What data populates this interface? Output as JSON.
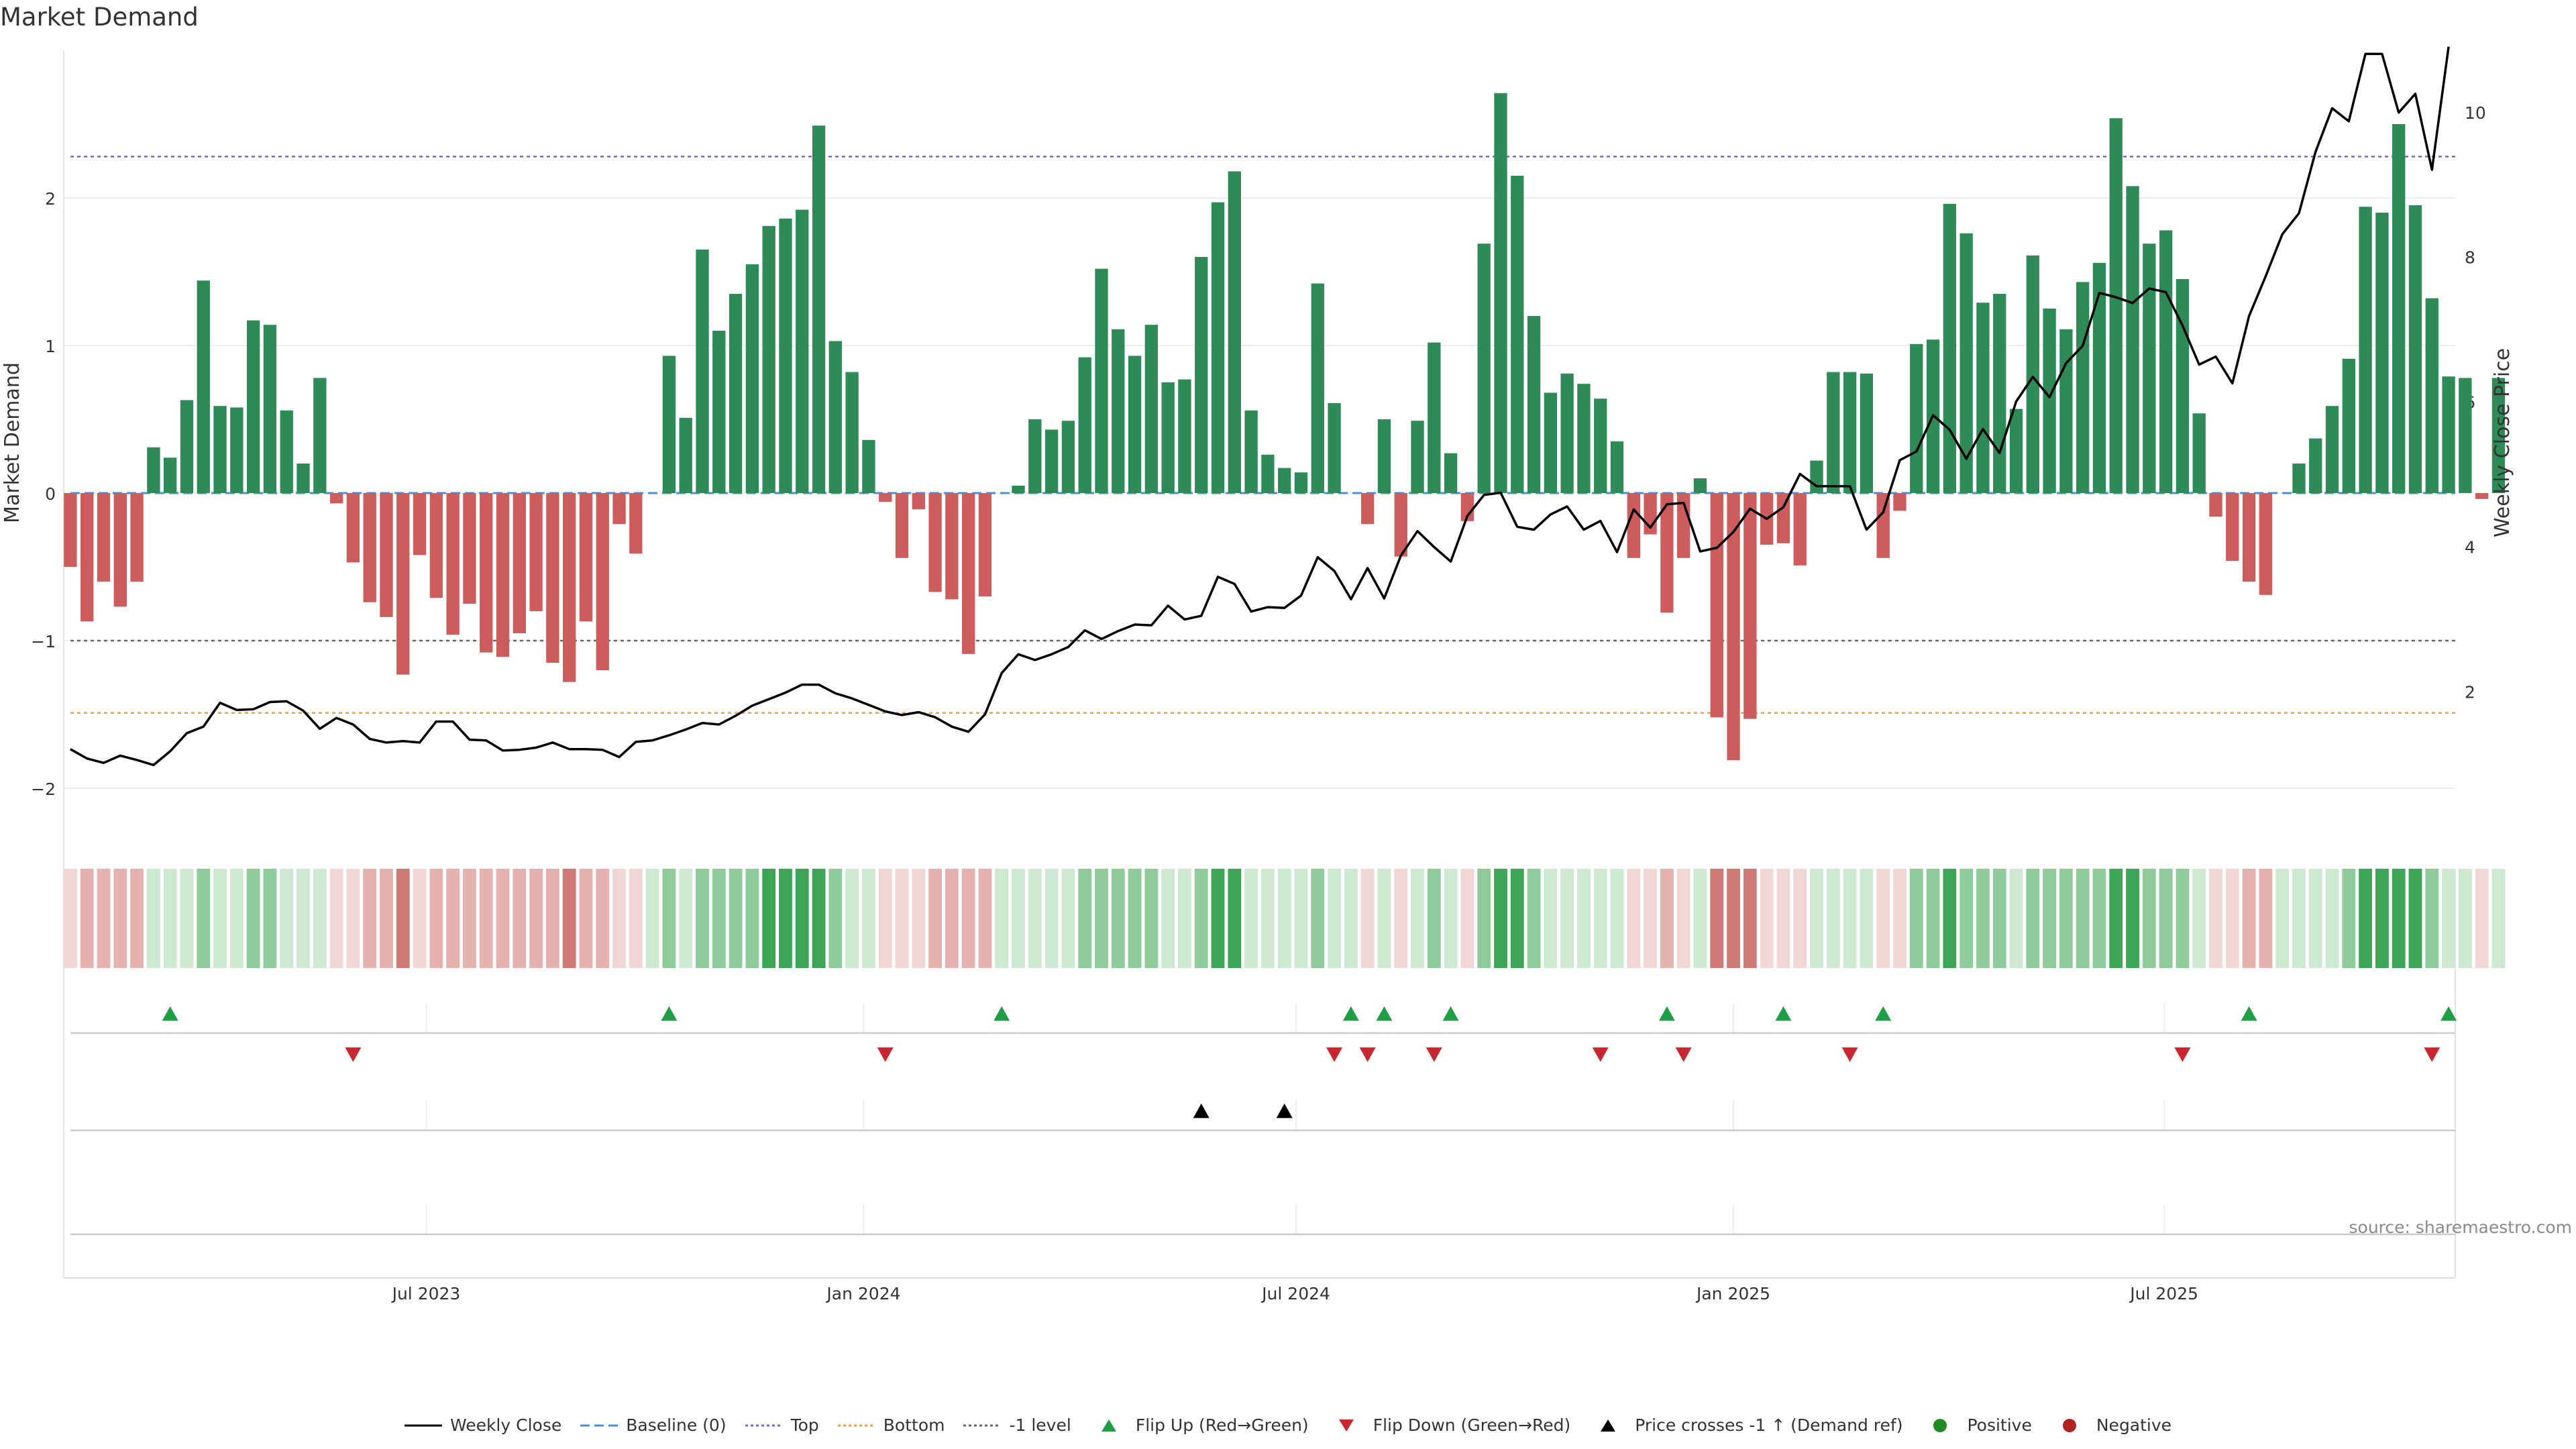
{
  "chart_data": {
    "type": "bar",
    "title": "Market Demand",
    "ylabel": "Market Demand",
    "y2label": "Weekly Close Price",
    "ylim": [
      -2.25,
      3.0
    ],
    "y2lim": [
      0.15,
      10.85
    ],
    "yticks": [
      -2,
      -1,
      0,
      1,
      2
    ],
    "y2ticks": [
      2,
      4,
      6,
      8,
      10
    ],
    "xrange_weeks": [
      -0.4,
      143.4
    ],
    "xticks": [
      {
        "label": "Jul 2023",
        "week": 21.4
      },
      {
        "label": "Jan 2024",
        "week": 47.7
      },
      {
        "label": "Jul 2024",
        "week": 73.7
      },
      {
        "label": "Jan 2025",
        "week": 100.0
      },
      {
        "label": "Jul 2025",
        "week": 125.9
      }
    ],
    "reference_lines": {
      "top": 2.28,
      "bottom": -1.49,
      "minus_one": -1.0,
      "baseline": 0
    },
    "demand": [
      -0.5,
      -0.87,
      -0.6,
      -0.77,
      -0.6,
      0.31,
      0.24,
      0.63,
      1.44,
      0.59,
      0.58,
      1.17,
      1.14,
      0.56,
      0.2,
      0.78,
      -0.07,
      -0.47,
      -0.74,
      -0.84,
      -1.23,
      -0.42,
      -0.71,
      -0.96,
      -0.75,
      -1.08,
      -1.11,
      -0.95,
      -0.8,
      -1.15,
      -1.28,
      -0.87,
      -1.2,
      -0.21,
      -0.41,
      0.0,
      0.93,
      0.51,
      1.65,
      1.1,
      1.35,
      1.55,
      1.81,
      1.86,
      1.92,
      2.49,
      1.03,
      0.82,
      0.36,
      -0.06,
      -0.44,
      -0.11,
      -0.67,
      -0.72,
      -1.09,
      -0.7,
      0.0,
      0.05,
      0.5,
      0.43,
      0.49,
      0.92,
      1.52,
      1.11,
      0.93,
      1.14,
      0.75,
      0.77,
      1.6,
      1.97,
      2.18,
      0.56,
      0.26,
      0.17,
      0.14,
      1.42,
      0.61,
      0.0,
      -0.21,
      0.5,
      -0.43,
      0.49,
      1.02,
      0.27,
      -0.19,
      1.69,
      2.71,
      2.15,
      1.2,
      0.68,
      0.81,
      0.74,
      0.64,
      0.35,
      -0.44,
      -0.28,
      -0.81,
      -0.44,
      0.1,
      -1.52,
      -1.81,
      -1.53,
      -0.35,
      -0.34,
      -0.49,
      0.22,
      0.82,
      0.82,
      0.81,
      -0.44,
      -0.12,
      1.01,
      1.04,
      1.96,
      1.76,
      1.29,
      1.35,
      0.57,
      1.61,
      1.25,
      1.11,
      1.43,
      1.56,
      2.54,
      2.08,
      1.69,
      1.78,
      1.45,
      0.54,
      -0.16,
      -0.46,
      -0.6,
      -0.69,
      0.0,
      0.2,
      0.37,
      0.59,
      0.91,
      1.94,
      1.9,
      2.5,
      1.95,
      1.32,
      0.79,
      0.78,
      -0.04,
      0.78
    ],
    "price": [
      1.2,
      1.07,
      1.01,
      1.11,
      1.05,
      0.98,
      1.17,
      1.42,
      1.51,
      1.84,
      1.74,
      1.75,
      1.85,
      1.86,
      1.73,
      1.48,
      1.63,
      1.54,
      1.34,
      1.29,
      1.31,
      1.29,
      1.58,
      1.58,
      1.33,
      1.32,
      1.18,
      1.19,
      1.22,
      1.29,
      1.2,
      1.2,
      1.19,
      1.09,
      1.3,
      1.32,
      1.39,
      1.47,
      1.56,
      1.54,
      1.66,
      1.8,
      1.89,
      1.98,
      2.09,
      2.09,
      1.97,
      1.9,
      1.81,
      1.72,
      1.67,
      1.71,
      1.64,
      1.51,
      1.44,
      1.68,
      2.25,
      2.51,
      2.43,
      2.51,
      2.61,
      2.84,
      2.72,
      2.83,
      2.92,
      2.91,
      3.18,
      2.99,
      3.04,
      3.58,
      3.48,
      3.1,
      3.16,
      3.15,
      3.32,
      3.85,
      3.66,
      3.27,
      3.7,
      3.28,
      3.87,
      4.21,
      3.99,
      3.79,
      4.42,
      4.71,
      4.74,
      4.27,
      4.23,
      4.44,
      4.55,
      4.23,
      4.35,
      3.92,
      4.51,
      4.26,
      4.58,
      4.6,
      3.93,
      3.98,
      4.2,
      4.52,
      4.38,
      4.54,
      5.0,
      4.83,
      4.83,
      4.83,
      4.23,
      4.47,
      5.19,
      5.31,
      5.81,
      5.61,
      5.21,
      5.62,
      5.29,
      6.0,
      6.34,
      6.06,
      6.53,
      6.77,
      7.5,
      7.44,
      7.36,
      7.56,
      7.51,
      7.05,
      6.51,
      6.62,
      6.25,
      7.18,
      7.73,
      8.31,
      8.6,
      9.45,
      10.05,
      9.87,
      10.8,
      10.8,
      9.99,
      10.25,
      9.2,
      10.9
    ],
    "flip_up_weeks": [
      6,
      36,
      56,
      77,
      79,
      83,
      96,
      103,
      109,
      131,
      143
    ],
    "flip_down_weeks": [
      17,
      49,
      76,
      78,
      82,
      92,
      97,
      107,
      127,
      142
    ],
    "price_cross_weeks": [
      68,
      73
    ],
    "heat_colors": {
      "neg_light": "#f1d6d5",
      "neg_mid": "#e6b2b0",
      "neg_dark": "#cf7a77",
      "pos_light": "#cde9d1",
      "pos_mid": "#8fcb9b",
      "pos_dark": "#3ea456"
    },
    "colors": {
      "positive": "#2e8b57",
      "negative": "#cd5c5c",
      "price": "#000000",
      "top": "#6b6bd0",
      "bottom": "#f0a038",
      "minus_one": "#666666",
      "baseline": "#4a90d9",
      "flip_up": "#1f9e46",
      "flip_down": "#c9262f",
      "cross": "#000000",
      "legend_positive": "#228b22",
      "legend_negative": "#b22222"
    }
  },
  "title": "Market Demand",
  "source": "source: sharemaestro.com",
  "legend": [
    {
      "key": "weekly-close",
      "label": "Weekly Close"
    },
    {
      "key": "baseline",
      "label": "Baseline (0)"
    },
    {
      "key": "top",
      "label": "Top"
    },
    {
      "key": "bottom",
      "label": "Bottom"
    },
    {
      "key": "minus-one",
      "label": "-1 level"
    },
    {
      "key": "flip-up",
      "label": "Flip Up (Red→Green)"
    },
    {
      "key": "flip-down",
      "label": "Flip Down (Green→Red)"
    },
    {
      "key": "price-cross",
      "label": "Price crosses -1 ↑ (Demand ref)"
    },
    {
      "key": "positive",
      "label": "Positive"
    },
    {
      "key": "negative",
      "label": "Negative"
    }
  ]
}
